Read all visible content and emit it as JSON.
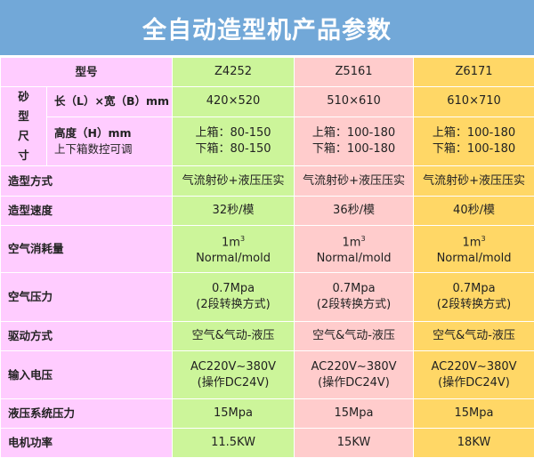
{
  "title": "全自动造型机产品参数",
  "colors": {
    "title_bg": "#72a8d8",
    "label_bg": "#ffccff",
    "z4252_bg": "#ccf59a",
    "z5161_bg": "#ffcccc",
    "z6171_bg": "#ffd766"
  },
  "header": {
    "label": "型号",
    "models": [
      "Z4252",
      "Z5161",
      "Z6171"
    ]
  },
  "sand_size": {
    "group": "砂型尺寸",
    "lb_label": "长（L）×宽（B）mm",
    "lb": [
      "420×520",
      "510×610",
      "610×710"
    ],
    "h_label1": "高度（H）mm",
    "h_label2": "上下箱数控可调",
    "h_upper": [
      "上箱：80-150",
      "上箱：100-180",
      "上箱：100-180"
    ],
    "h_lower": [
      "下箱：80-150",
      "下箱：100-180",
      "下箱：100-180"
    ]
  },
  "rows": [
    {
      "label": "造型方式",
      "values": [
        "气流射砂+液压压实",
        "气流射砂+液压压实",
        "气流射砂+液压压实"
      ]
    },
    {
      "label": "造型速度",
      "values": [
        "32秒/模",
        "36秒/模",
        "40秒/模"
      ]
    },
    {
      "label": "空气消耗量",
      "line1": [
        "1m",
        "1m",
        "1m"
      ],
      "sup": "3",
      "line2": [
        "Normal/mold",
        "Normal/mold",
        "Normal/mold"
      ]
    },
    {
      "label": "空气压力",
      "line1": [
        "0.7Mpa",
        "0.7Mpa",
        "0.7Mpa"
      ],
      "line2": [
        "(2段转换方式)",
        "(2段转换方式)",
        "(2段转换方式)"
      ]
    },
    {
      "label": "驱动方式",
      "values": [
        "空气&气动-液压",
        "空气&气动-液压",
        "空气&气动-液压"
      ]
    },
    {
      "label": "输入电压",
      "line1": [
        "AC220V~380V",
        "AC220V~380V",
        "AC220V~380V"
      ],
      "line2": [
        "(操作DC24V)",
        "(操作DC24V)",
        "(操作DC24V)"
      ]
    },
    {
      "label": "液压系统压力",
      "values": [
        "15Mpa",
        "15Mpa",
        "15Mpa"
      ]
    },
    {
      "label": "电机功率",
      "values": [
        "11.5KW",
        "15KW",
        "18KW"
      ]
    }
  ]
}
